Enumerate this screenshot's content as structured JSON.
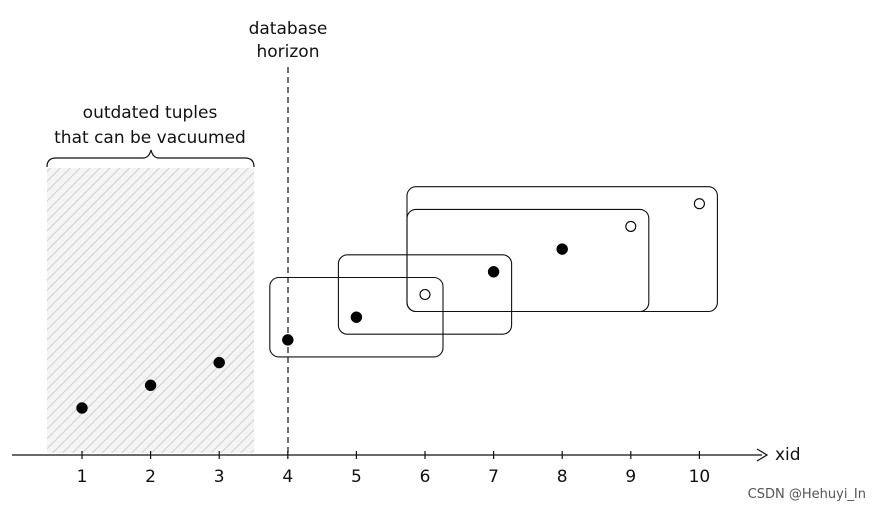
{
  "horizon_label": [
    "database",
    "horizon"
  ],
  "outdated_label": [
    "outdated tuples",
    "that can be vacuumed"
  ],
  "axis_label": "xid",
  "ticks": [
    "1",
    "2",
    "3",
    "4",
    "5",
    "6",
    "7",
    "8",
    "9",
    "10"
  ],
  "points": [
    {
      "x": 1,
      "filled": true
    },
    {
      "x": 2,
      "filled": true
    },
    {
      "x": 3,
      "filled": true
    },
    {
      "x": 4,
      "filled": true
    },
    {
      "x": 5,
      "filled": true
    },
    {
      "x": 6,
      "filled": false
    },
    {
      "x": 7,
      "filled": true
    },
    {
      "x": 8,
      "filled": true
    },
    {
      "x": 9,
      "filled": false
    },
    {
      "x": 10,
      "filled": false
    }
  ],
  "snapshots": [
    {
      "from": 4,
      "to": 6
    },
    {
      "from": 5,
      "to": 7
    },
    {
      "from": 6,
      "to": 9
    },
    {
      "from": 6,
      "to": 10
    }
  ],
  "watermark": "CSDN @Hehuyi_In",
  "colors": {
    "line": "#111111",
    "hatch": "#c8c8c8",
    "hatch_bg": "#f4f4f4"
  }
}
